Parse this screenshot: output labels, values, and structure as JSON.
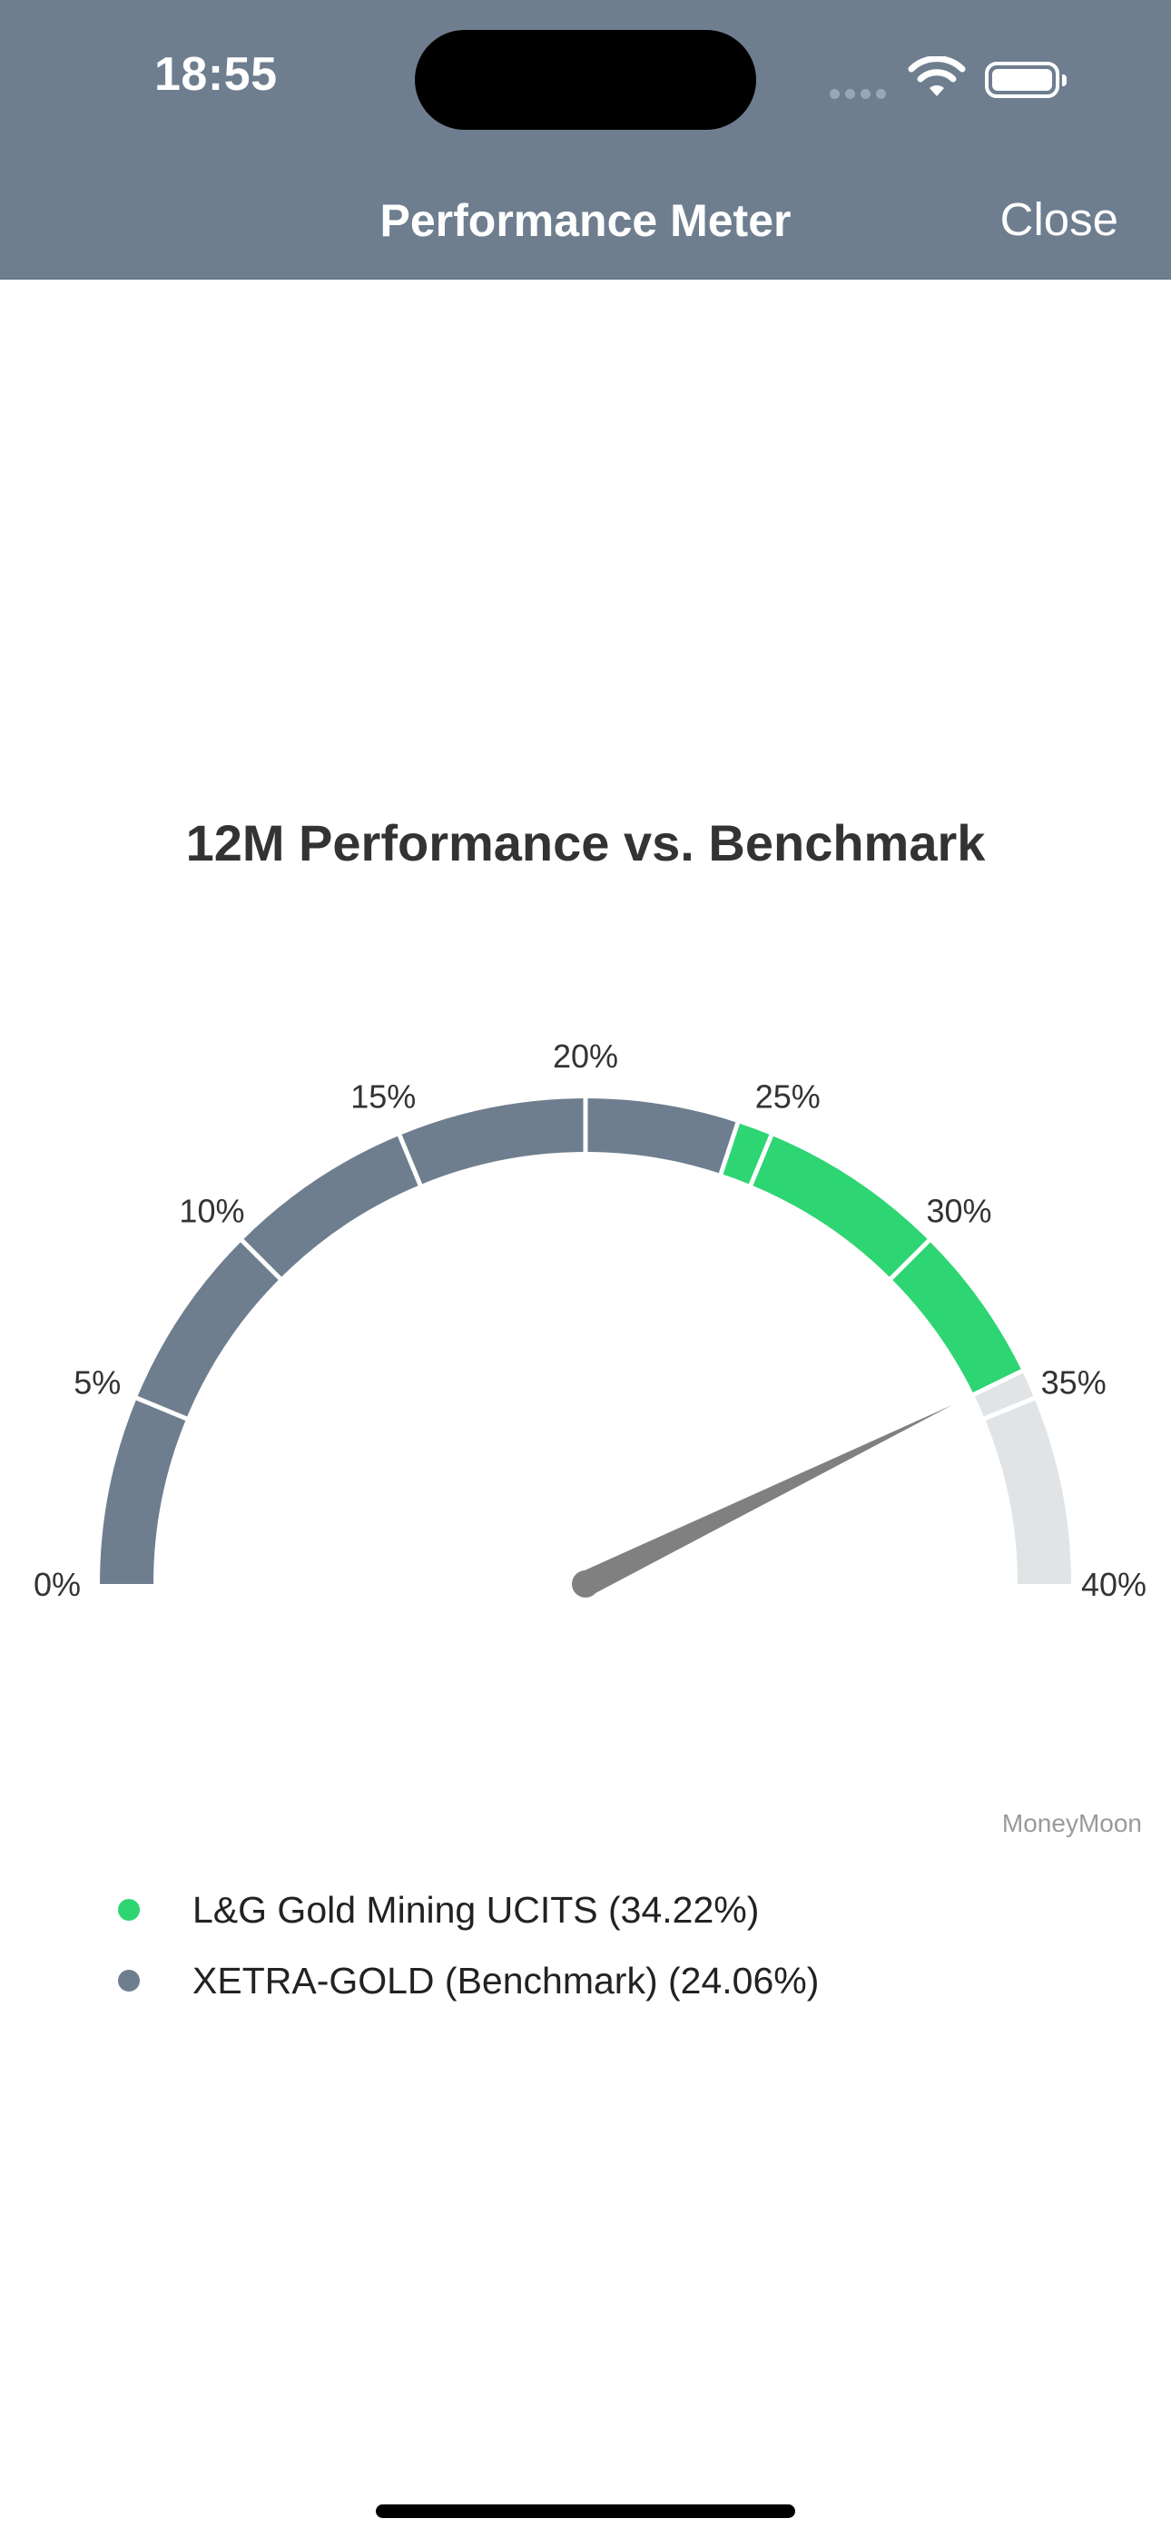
{
  "status_bar": {
    "time": "18:55"
  },
  "nav": {
    "title": "Performance Meter",
    "close_label": "Close"
  },
  "chart_data": {
    "type": "gauge",
    "title": "12M Performance vs. Benchmark",
    "range": [
      0,
      40
    ],
    "tick_values": [
      0,
      5,
      10,
      15,
      20,
      25,
      30,
      35,
      40
    ],
    "tick_labels": [
      "0%",
      "5%",
      "10%",
      "15%",
      "20%",
      "25%",
      "30%",
      "35%",
      "40%"
    ],
    "segment_boundaries": [
      0,
      5,
      10,
      15,
      20,
      24.06,
      25,
      30,
      34.22,
      35,
      40
    ],
    "series": [
      {
        "name": "L&G Gold Mining UCITS",
        "value": 34.22,
        "color": "#2ed573"
      },
      {
        "name": "XETRA-GOLD (Benchmark)",
        "value": 24.06,
        "color": "#6e7e8f"
      }
    ],
    "remainder_color": "#e1e4e7",
    "needle_value": 34.22,
    "needle_color": "#808080"
  },
  "watermark": "MoneyMoon",
  "legend": [
    {
      "label": "L&G Gold Mining UCITS (34.22%)",
      "color": "#2ed573"
    },
    {
      "label": "XETRA-GOLD (Benchmark) (24.06%)",
      "color": "#6e7e8f"
    }
  ]
}
